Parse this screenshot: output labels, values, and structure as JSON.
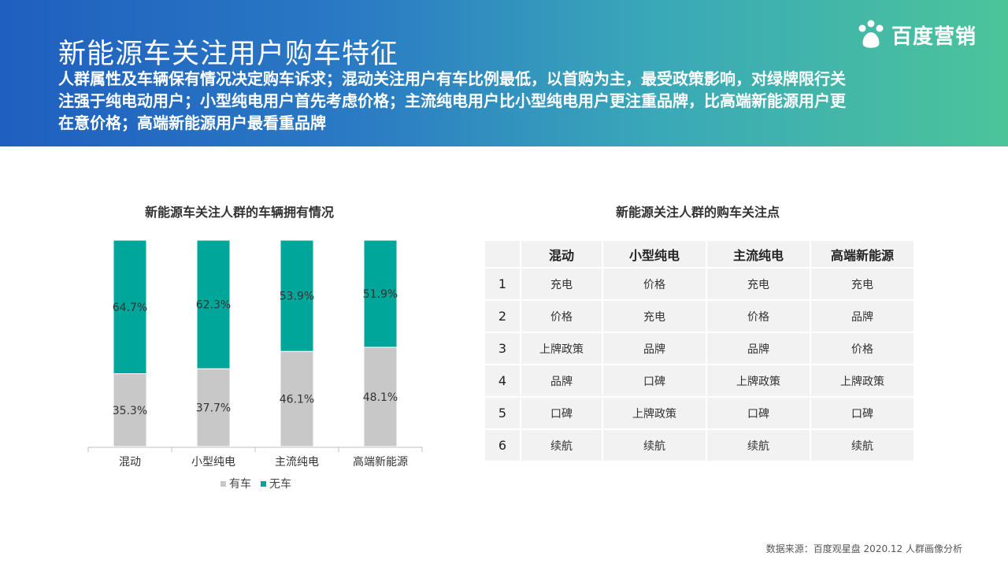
{
  "header": {
    "title": "新能源车关注用户购车特征",
    "subtitle": "人群属性及车辆保有情况决定购车诉求；混动关注用户有车比例最低，以首购为主，最受政策影响，对绿牌限行关注强于纯电动用户；小型纯电用户首先考虑价格；主流纯电用户比小型纯电用户更注重品牌，比高端新能源用户更在意价格；高端新能源用户最看重品牌",
    "logo_text": "百度营销"
  },
  "chart_data": [
    {
      "type": "bar",
      "stacked": true,
      "title": "新能源车关注人群的车辆拥有情况",
      "categories": [
        "混动",
        "小型纯电",
        "主流纯电",
        "高端新能源"
      ],
      "series": [
        {
          "name": "有车",
          "values": [
            35.3,
            37.7,
            46.1,
            48.1
          ],
          "labels": [
            "35.3%",
            "37.7%",
            "46.1%",
            "48.1%"
          ],
          "color": "#c8c8c8"
        },
        {
          "name": "无车",
          "values": [
            64.7,
            62.3,
            53.9,
            51.9
          ],
          "labels": [
            "64.7%",
            "62.3%",
            "53.9%",
            "51.9%"
          ],
          "color": "#00a699"
        }
      ],
      "ylim": [
        0,
        100
      ],
      "legend": "bottom"
    },
    {
      "type": "table",
      "title": "新能源关注人群的购车关注点",
      "columns": [
        "",
        "混动",
        "小型纯电",
        "主流纯电",
        "高端新能源"
      ],
      "rows": [
        {
          "rank": "1",
          "cells": [
            "充电",
            "价格",
            "充电",
            "充电"
          ]
        },
        {
          "rank": "2",
          "cells": [
            "价格",
            "充电",
            "价格",
            "品牌"
          ]
        },
        {
          "rank": "3",
          "cells": [
            "上牌政策",
            "品牌",
            "品牌",
            "价格"
          ]
        },
        {
          "rank": "4",
          "cells": [
            "品牌",
            "口碑",
            "上牌政策",
            "上牌政策"
          ]
        },
        {
          "rank": "5",
          "cells": [
            "口碑",
            "上牌政策",
            "口碑",
            "口碑"
          ]
        },
        {
          "rank": "6",
          "cells": [
            "续航",
            "续航",
            "续航",
            "续航"
          ]
        }
      ]
    }
  ],
  "legend": [
    {
      "name": "有车",
      "color": "#c8c8c8"
    },
    {
      "name": "无车",
      "color": "#00a699"
    }
  ],
  "source": "数据来源：百度观星盘 2020.12 人群画像分析"
}
